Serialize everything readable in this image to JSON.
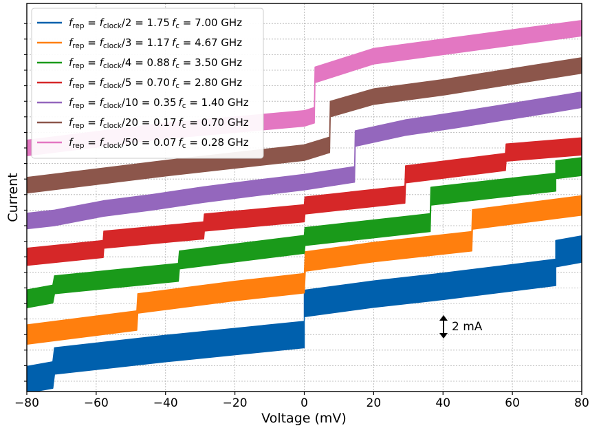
{
  "chart_data": {
    "type": "line",
    "xlabel": "Voltage (mV)",
    "ylabel": "Current",
    "xlim": [
      -80,
      80
    ],
    "xticks": [
      -80,
      -60,
      -40,
      -20,
      0,
      20,
      40,
      60,
      80
    ],
    "grid": true,
    "legend_position": "top-left",
    "annotation": {
      "text": "2 mA",
      "x_mV": 40
    },
    "series": [
      {
        "name": "f_rep = f_clock/2 = 1.75 f_c = 7.00 GHz",
        "color": "#0060ad",
        "legend": {
          "n": "2",
          "m": "1.75",
          "f": "7.00"
        },
        "width": 1.7,
        "points": [
          [
            -80,
            0.1
          ],
          [
            -72.5,
            0.4
          ],
          [
            -72,
            1.3
          ],
          [
            -40,
            2.1
          ],
          [
            0,
            3.0
          ],
          [
            0,
            5.0
          ],
          [
            20,
            5.6
          ],
          [
            40,
            6.1
          ],
          [
            72.5,
            7.0
          ],
          [
            72.5,
            8.2
          ],
          [
            80,
            8.5
          ]
        ]
      },
      {
        "name": "f_rep = f_clock/3 = 1.17 f_c = 4.67 GHz",
        "color": "#ff7f0e",
        "legend": {
          "n": "3",
          "m": "1.17",
          "f": "4.67"
        },
        "width": 1.25,
        "points": [
          [
            -80,
            3.0
          ],
          [
            -48.3,
            3.9
          ],
          [
            -48,
            5.0
          ],
          [
            -20,
            5.8
          ],
          [
            0,
            6.3
          ],
          [
            0.3,
            7.7
          ],
          [
            20,
            8.3
          ],
          [
            48.3,
            9.0
          ],
          [
            48.5,
            10.4
          ],
          [
            80,
            11.3
          ]
        ]
      },
      {
        "name": "f_rep = f_clock/4 = 0.88 f_c = 3.50 GHz",
        "color": "#1a9a1a",
        "legend": {
          "n": "4",
          "m": "0.88",
          "f": "3.50"
        },
        "width": 1.15,
        "points": [
          [
            -80,
            5.3
          ],
          [
            -72.5,
            5.6
          ],
          [
            -72,
            6.2
          ],
          [
            -36.3,
            7.0
          ],
          [
            -36,
            7.8
          ],
          [
            0,
            8.8
          ],
          [
            0.2,
            9.3
          ],
          [
            36.3,
            10.2
          ],
          [
            36.5,
            11.9
          ],
          [
            72.5,
            12.8
          ],
          [
            72.5,
            13.6
          ],
          [
            80,
            13.8
          ]
        ]
      },
      {
        "name": "f_rep = f_clock/5 = 0.70 f_c = 2.80 GHz",
        "color": "#d62728",
        "legend": {
          "n": "5",
          "m": "0.70",
          "f": "2.80"
        },
        "width": 1.1,
        "points": [
          [
            -80,
            8.0
          ],
          [
            -58,
            8.5
          ],
          [
            -57.8,
            9.1
          ],
          [
            -29,
            9.7
          ],
          [
            -28.8,
            10.2
          ],
          [
            0,
            10.8
          ],
          [
            0.2,
            11.3
          ],
          [
            29,
            12.0
          ],
          [
            29.2,
            13.3
          ],
          [
            58,
            14.1
          ],
          [
            58.2,
            14.7
          ],
          [
            80,
            15.1
          ]
        ]
      },
      {
        "name": "f_rep = f_clock/10 = 0.35 f_c = 1.40 GHz",
        "color": "#9467bd",
        "legend": {
          "n": "10",
          "m": "0.35",
          "f": "1.40"
        },
        "width": 1.0,
        "points": [
          [
            -80,
            10.3
          ],
          [
            -72,
            10.5
          ],
          [
            -58,
            11.1
          ],
          [
            -44,
            11.5
          ],
          [
            -29,
            12.0
          ],
          [
            -15,
            12.4
          ],
          [
            0,
            12.8
          ],
          [
            14.5,
            13.3
          ],
          [
            14.7,
            15.6
          ],
          [
            29,
            16.3
          ],
          [
            44,
            16.8
          ],
          [
            58,
            17.3
          ],
          [
            72,
            17.8
          ],
          [
            80,
            18.1
          ]
        ]
      },
      {
        "name": "f_rep = f_clock/20 = 0.17 f_c = 0.70 GHz",
        "color": "#8c564b",
        "legend": {
          "n": "20",
          "m": "0.17",
          "f": "0.70"
        },
        "width": 1.0,
        "points": [
          [
            -80,
            12.6
          ],
          [
            -40,
            13.7
          ],
          [
            0,
            14.7
          ],
          [
            7.3,
            15.2
          ],
          [
            7.5,
            17.5
          ],
          [
            20,
            18.3
          ],
          [
            40,
            18.9
          ],
          [
            60,
            19.6
          ],
          [
            80,
            20.3
          ]
        ]
      },
      {
        "name": "f_rep = f_clock/50 = 0.07 f_c = 0.28 GHz",
        "color": "#e377c2",
        "legend": {
          "n": "50",
          "m": "0.07",
          "f": "0.28"
        },
        "width": 1.0,
        "points": [
          [
            -80,
            15.0
          ],
          [
            -40,
            16.1
          ],
          [
            0,
            16.9
          ],
          [
            2.9,
            17.1
          ],
          [
            3.1,
            19.7
          ],
          [
            20,
            20.9
          ],
          [
            40,
            21.5
          ],
          [
            60,
            22.1
          ],
          [
            80,
            22.7
          ]
        ]
      }
    ]
  }
}
